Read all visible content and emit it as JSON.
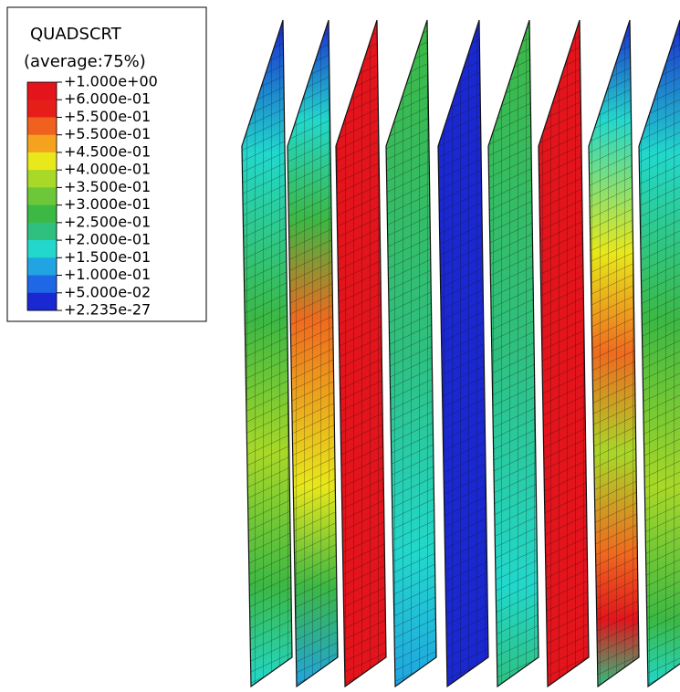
{
  "legend": {
    "title": "QUADSCRT",
    "subtitle": "(average:75%)",
    "labels": [
      "+1.000e+00",
      "+6.000e-01",
      "+5.500e-01",
      "+5.500e-01",
      "+4.500e-01",
      "+4.000e-01",
      "+3.500e-01",
      "+3.000e-01",
      "+2.500e-01",
      "+2.000e-01",
      "+1.500e-01",
      "+1.000e-01",
      "+5.000e-02",
      "+2.235e-27"
    ],
    "colors": [
      "#e3141b",
      "#e61e1a",
      "#f0601e",
      "#f5a31f",
      "#e8e81a",
      "#a8d828",
      "#6cc838",
      "#3cb844",
      "#2fc080",
      "#22d8cc",
      "#20a4e2",
      "#1e68e6",
      "#1a28d2"
    ]
  }
}
